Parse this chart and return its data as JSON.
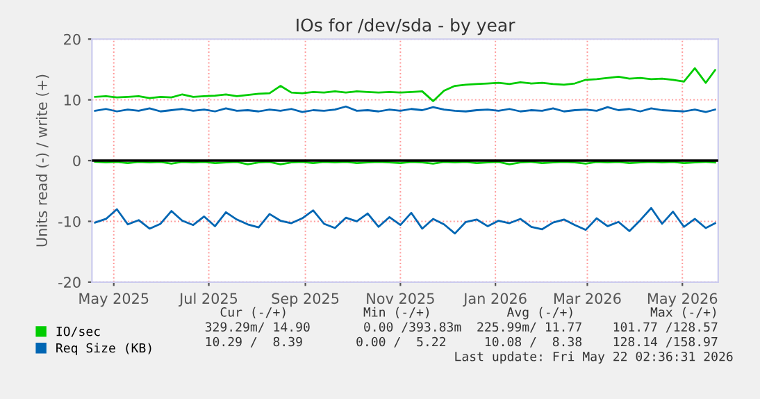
{
  "chart_data": {
    "type": "line",
    "title": "IOs for /dev/sda - by year",
    "ylabel": "Units read (-) / write (+)",
    "x": [
      "2025-04-19",
      "2025-04-26",
      "2025-05-03",
      "2025-05-10",
      "2025-05-17",
      "2025-05-24",
      "2025-05-31",
      "2025-06-07",
      "2025-06-14",
      "2025-06-21",
      "2025-06-28",
      "2025-07-05",
      "2025-07-12",
      "2025-07-19",
      "2025-07-26",
      "2025-08-02",
      "2025-08-09",
      "2025-08-16",
      "2025-08-23",
      "2025-08-30",
      "2025-09-06",
      "2025-09-13",
      "2025-09-20",
      "2025-09-27",
      "2025-10-04",
      "2025-10-11",
      "2025-10-18",
      "2025-10-25",
      "2025-11-01",
      "2025-11-08",
      "2025-11-15",
      "2025-11-22",
      "2025-11-29",
      "2025-12-06",
      "2025-12-13",
      "2025-12-20",
      "2025-12-27",
      "2026-01-03",
      "2026-01-10",
      "2026-01-17",
      "2026-01-24",
      "2026-01-31",
      "2026-02-07",
      "2026-02-14",
      "2026-02-21",
      "2026-02-28",
      "2026-03-07",
      "2026-03-14",
      "2026-03-21",
      "2026-03-28",
      "2026-04-04",
      "2026-04-11",
      "2026-04-18",
      "2026-04-25",
      "2026-05-02",
      "2026-05-09",
      "2026-05-16",
      "2026-05-22"
    ],
    "series": [
      {
        "name": "IO/sec",
        "color": "#00cc00",
        "values": [
          10.5,
          10.6,
          10.4,
          10.5,
          10.6,
          10.3,
          10.5,
          10.4,
          10.9,
          10.5,
          10.6,
          10.7,
          10.9,
          10.6,
          10.8,
          11.0,
          11.1,
          12.3,
          11.2,
          11.1,
          11.3,
          11.2,
          11.4,
          11.2,
          11.4,
          11.3,
          11.2,
          11.3,
          11.2,
          11.3,
          11.4,
          9.8,
          11.5,
          12.3,
          12.5,
          12.6,
          12.7,
          12.8,
          12.6,
          12.9,
          12.7,
          12.8,
          12.6,
          12.5,
          12.7,
          13.3,
          13.4,
          13.6,
          13.8,
          13.5,
          13.6,
          13.4,
          13.5,
          13.3,
          13.0,
          15.2,
          12.8,
          14.9
        ]
      },
      {
        "color": "#00cc00",
        "values": [
          -0.2,
          -0.3,
          -0.2,
          -0.4,
          -0.2,
          -0.3,
          -0.2,
          -0.5,
          -0.2,
          -0.3,
          -0.2,
          -0.4,
          -0.3,
          -0.2,
          -0.6,
          -0.3,
          -0.2,
          -0.6,
          -0.3,
          -0.2,
          -0.4,
          -0.2,
          -0.3,
          -0.2,
          -0.4,
          -0.3,
          -0.2,
          -0.3,
          -0.4,
          -0.2,
          -0.3,
          -0.5,
          -0.2,
          -0.3,
          -0.2,
          -0.4,
          -0.3,
          -0.2,
          -0.6,
          -0.3,
          -0.2,
          -0.4,
          -0.3,
          -0.2,
          -0.3,
          -0.5,
          -0.2,
          -0.3,
          -0.2,
          -0.4,
          -0.3,
          -0.2,
          -0.3,
          -0.2,
          -0.4,
          -0.3,
          -0.2,
          -0.3
        ]
      },
      {
        "name": "Req Size (KB)",
        "color": "#0066b3",
        "values": [
          8.2,
          8.5,
          8.1,
          8.4,
          8.2,
          8.6,
          8.1,
          8.3,
          8.5,
          8.2,
          8.4,
          8.1,
          8.6,
          8.2,
          8.3,
          8.1,
          8.4,
          8.2,
          8.5,
          8.0,
          8.3,
          8.2,
          8.4,
          8.9,
          8.2,
          8.3,
          8.1,
          8.4,
          8.2,
          8.5,
          8.3,
          8.8,
          8.4,
          8.2,
          8.1,
          8.3,
          8.4,
          8.2,
          8.5,
          8.1,
          8.3,
          8.2,
          8.6,
          8.1,
          8.3,
          8.4,
          8.2,
          8.8,
          8.3,
          8.5,
          8.1,
          8.6,
          8.3,
          8.2,
          8.1,
          8.4,
          8.0,
          8.4
        ]
      },
      {
        "color": "#0066b3",
        "values": [
          -10.2,
          -9.6,
          -8.0,
          -10.5,
          -9.8,
          -11.2,
          -10.4,
          -8.3,
          -9.9,
          -10.6,
          -9.2,
          -10.8,
          -8.5,
          -9.7,
          -10.5,
          -11.0,
          -8.8,
          -9.9,
          -10.3,
          -9.5,
          -8.2,
          -10.4,
          -11.1,
          -9.4,
          -10.0,
          -8.7,
          -10.9,
          -9.3,
          -10.6,
          -8.6,
          -11.2,
          -9.6,
          -10.5,
          -12.0,
          -10.1,
          -9.7,
          -10.8,
          -9.9,
          -10.3,
          -9.6,
          -10.9,
          -11.3,
          -10.2,
          -9.7,
          -10.6,
          -11.4,
          -9.5,
          -10.8,
          -10.1,
          -11.6,
          -9.8,
          -7.8,
          -10.4,
          -8.4,
          -10.9,
          -9.6,
          -11.1,
          -10.3
        ]
      }
    ],
    "xlim": [
      "2025-04-17",
      "2026-05-24"
    ],
    "xticks": [
      {
        "value": "2025-05-01",
        "label": "May 2025"
      },
      {
        "value": "2025-07-01",
        "label": "Jul 2025"
      },
      {
        "value": "2025-09-01",
        "label": "Sep 2025"
      },
      {
        "value": "2025-11-01",
        "label": "Nov 2025"
      },
      {
        "value": "2026-01-01",
        "label": "Jan 2026"
      },
      {
        "value": "2026-03-01",
        "label": "Mar 2026"
      },
      {
        "value": "2026-05-01",
        "label": "May 2026"
      }
    ],
    "ylim": [
      -20,
      20
    ],
    "yticks": [
      -20,
      -10,
      0,
      10,
      20
    ],
    "ref_lines": [
      {
        "axis": "y",
        "value": 0,
        "color": "#000000"
      }
    ],
    "grid": true,
    "legend": "bottom",
    "marker": "none",
    "line_style": "solid",
    "annotations": [
      "Cur (-/+)          Min (-/+)          Avg (-/+)          Max (-/+)",
      "329.29m/ 14.90       0.00 /393.83m  225.99m/ 11.77    101.77 /128.57",
      "10.29 /  8.39       0.00 /  5.22     10.08 /  8.38    128.14 /158.97",
      "Last update: Fri May 22 02:36:31 2026"
    ]
  }
}
